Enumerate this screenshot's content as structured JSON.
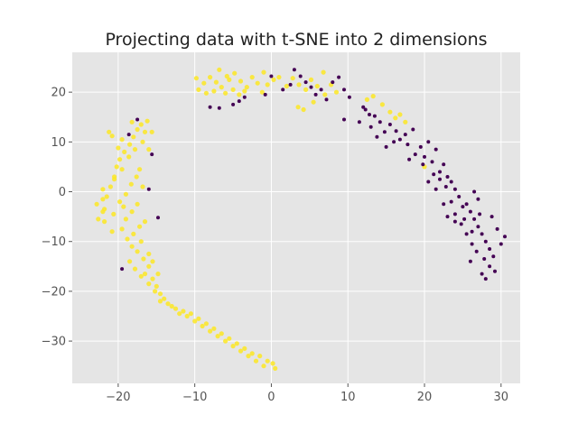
{
  "chart_data": {
    "type": "scatter",
    "title": "Projecting data with t-SNE into 2 dimensions",
    "xlabel": "",
    "ylabel": "",
    "xlim": [
      -26,
      32.5
    ],
    "ylim": [
      -38.5,
      28
    ],
    "xticks": [
      -20,
      -10,
      0,
      10,
      20,
      30
    ],
    "yticks": [
      -30,
      -20,
      -10,
      0,
      10,
      20
    ],
    "grid": true,
    "background": "#e5e5e5",
    "gridColor": "#ffffff",
    "series": [
      {
        "color": "#fde725",
        "points": [
          [
            -22.0,
            -4.0
          ],
          [
            -22.8,
            -2.5
          ],
          [
            -21.5,
            -1.0
          ],
          [
            -21.0,
            1.0
          ],
          [
            -20.5,
            3.0
          ],
          [
            -20.2,
            5.0
          ],
          [
            -19.8,
            6.5
          ],
          [
            -19.2,
            8.0
          ],
          [
            -18.5,
            9.5
          ],
          [
            -18.0,
            11.0
          ],
          [
            -17.5,
            12.5
          ],
          [
            -17.0,
            13.5
          ],
          [
            -16.5,
            12.0
          ],
          [
            -16.8,
            10.0
          ],
          [
            -17.8,
            8.5
          ],
          [
            -18.6,
            7.0
          ],
          [
            -19.5,
            4.5
          ],
          [
            -20.5,
            2.5
          ],
          [
            -21.2,
            12.0
          ],
          [
            -20.8,
            11.2
          ],
          [
            -22.0,
            -1.5
          ],
          [
            -21.8,
            -3.5
          ],
          [
            -22.6,
            -5.5
          ],
          [
            -21.8,
            -6.0
          ],
          [
            -20.6,
            -4.5
          ],
          [
            -19.8,
            -2.0
          ],
          [
            -19.0,
            -0.5
          ],
          [
            -18.3,
            1.5
          ],
          [
            -17.6,
            3.0
          ],
          [
            -17.2,
            4.5
          ],
          [
            -16.8,
            1.0
          ],
          [
            -17.5,
            -2.5
          ],
          [
            -18.2,
            -4.0
          ],
          [
            -19.0,
            -5.5
          ],
          [
            -19.5,
            -7.5
          ],
          [
            -18.8,
            -9.5
          ],
          [
            -18.0,
            -8.5
          ],
          [
            -17.2,
            -7.0
          ],
          [
            -16.5,
            -6.0
          ],
          [
            -17.0,
            -10.0
          ],
          [
            -17.5,
            -12.0
          ],
          [
            -16.7,
            -13.5
          ],
          [
            -16.0,
            -15.0
          ],
          [
            -16.5,
            -16.5
          ],
          [
            -15.5,
            -17.5
          ],
          [
            -15.0,
            -19.0
          ],
          [
            -14.5,
            -20.5
          ],
          [
            -14.0,
            -21.5
          ],
          [
            -13.5,
            -22.5
          ],
          [
            -12.5,
            -23.5
          ],
          [
            -11.5,
            -24.0
          ],
          [
            -10.5,
            -24.5
          ],
          [
            -9.5,
            -25.5
          ],
          [
            -8.5,
            -26.5
          ],
          [
            -7.5,
            -27.5
          ],
          [
            -6.5,
            -28.5
          ],
          [
            -5.5,
            -29.5
          ],
          [
            -4.5,
            -30.5
          ],
          [
            -3.5,
            -31.5
          ],
          [
            -2.5,
            -32.5
          ],
          [
            -1.5,
            -33.0
          ],
          [
            -0.5,
            -34.0
          ],
          [
            0.2,
            -34.5
          ],
          [
            0.5,
            -35.5
          ],
          [
            -1.0,
            -35.0
          ],
          [
            -2.0,
            -34.0
          ],
          [
            -3.0,
            -33.0
          ],
          [
            -4.0,
            -32.0
          ],
          [
            -5.0,
            -31.0
          ],
          [
            -6.0,
            -30.0
          ],
          [
            -7.0,
            -29.0
          ],
          [
            -8.0,
            -28.0
          ],
          [
            -9.0,
            -27.0
          ],
          [
            -10.0,
            -26.0
          ],
          [
            -11.0,
            -25.0
          ],
          [
            -12.0,
            -24.5
          ],
          [
            -13.0,
            -23.0
          ],
          [
            -14.5,
            -22.0
          ],
          [
            -15.2,
            -20.0
          ],
          [
            -16.0,
            -18.5
          ],
          [
            -17.0,
            -17.0
          ],
          [
            -17.8,
            -15.5
          ],
          [
            -18.5,
            -14.0
          ],
          [
            -14.8,
            -16.5
          ],
          [
            -15.5,
            -14.0
          ],
          [
            -16.0,
            -12.5
          ],
          [
            -18.2,
            -11.0
          ],
          [
            -19.3,
            -3.0
          ],
          [
            -20.8,
            -8.0
          ],
          [
            -22.0,
            0.5
          ],
          [
            -16.0,
            8.5
          ],
          [
            -15.6,
            12.0
          ],
          [
            -16.2,
            14.2
          ],
          [
            -18.2,
            14.0
          ],
          [
            -19.5,
            10.5
          ],
          [
            -20.0,
            8.8
          ],
          [
            -9.5,
            20.5
          ],
          [
            -8.8,
            21.8
          ],
          [
            -8.0,
            23.0
          ],
          [
            -7.2,
            22.0
          ],
          [
            -6.5,
            21.0
          ],
          [
            -5.5,
            22.5
          ],
          [
            -4.8,
            23.8
          ],
          [
            -4.0,
            22.2
          ],
          [
            -3.2,
            21.0
          ],
          [
            -2.5,
            23.0
          ],
          [
            -1.8,
            21.8
          ],
          [
            -8.5,
            19.8
          ],
          [
            -7.5,
            20.2
          ],
          [
            -6.0,
            19.8
          ],
          [
            -5.0,
            20.5
          ],
          [
            -4.2,
            19.5
          ],
          [
            -3.5,
            20.2
          ],
          [
            -6.8,
            24.5
          ],
          [
            -5.8,
            23.2
          ],
          [
            -1.2,
            20.0
          ],
          [
            -0.5,
            21.5
          ],
          [
            0.3,
            22.5
          ],
          [
            1.0,
            23.0
          ],
          [
            2.0,
            21.2
          ],
          [
            2.8,
            22.8
          ],
          [
            3.6,
            21.5
          ],
          [
            4.5,
            20.5
          ],
          [
            5.2,
            22.5
          ],
          [
            6.0,
            21.2
          ],
          [
            7.0,
            19.5
          ],
          [
            7.8,
            21.5
          ],
          [
            8.5,
            20.0
          ],
          [
            5.5,
            18.0
          ],
          [
            3.5,
            17.0
          ],
          [
            4.2,
            16.5
          ],
          [
            12.5,
            18.5
          ],
          [
            13.3,
            19.2
          ],
          [
            14.5,
            17.5
          ],
          [
            15.5,
            16.0
          ],
          [
            16.2,
            14.8
          ],
          [
            16.8,
            15.5
          ],
          [
            17.5,
            14.0
          ],
          [
            20.0,
            5.0
          ],
          [
            -9.8,
            22.8
          ],
          [
            -1.0,
            24.0
          ],
          [
            6.8,
            24.0
          ]
        ]
      },
      {
        "color": "#440154",
        "points": [
          [
            -8.0,
            17.0
          ],
          [
            -6.8,
            16.8
          ],
          [
            -5.0,
            17.5
          ],
          [
            -4.2,
            18.2
          ],
          [
            -3.5,
            19.0
          ],
          [
            -0.8,
            19.5
          ],
          [
            0.0,
            23.2
          ],
          [
            1.5,
            20.5
          ],
          [
            2.5,
            21.5
          ],
          [
            3.0,
            24.5
          ],
          [
            3.8,
            23.2
          ],
          [
            4.5,
            22.0
          ],
          [
            5.2,
            21.0
          ],
          [
            5.8,
            19.5
          ],
          [
            6.5,
            20.5
          ],
          [
            7.2,
            18.5
          ],
          [
            8.0,
            22.0
          ],
          [
            8.8,
            23.0
          ],
          [
            9.5,
            20.5
          ],
          [
            10.2,
            19.0
          ],
          [
            9.5,
            14.5
          ],
          [
            11.5,
            14.0
          ],
          [
            12.0,
            17.0
          ],
          [
            12.8,
            15.5
          ],
          [
            13.5,
            15.2
          ],
          [
            14.2,
            14.0
          ],
          [
            14.8,
            12.0
          ],
          [
            15.5,
            13.5
          ],
          [
            16.3,
            12.2
          ],
          [
            16.8,
            10.5
          ],
          [
            17.5,
            11.5
          ],
          [
            18.5,
            12.5
          ],
          [
            19.5,
            9.0
          ],
          [
            20.0,
            7.0
          ],
          [
            20.5,
            10.0
          ],
          [
            21.0,
            6.0
          ],
          [
            21.5,
            8.5
          ],
          [
            22.0,
            4.0
          ],
          [
            22.5,
            5.5
          ],
          [
            23.0,
            3.0
          ],
          [
            23.5,
            2.0
          ],
          [
            24.0,
            0.5
          ],
          [
            24.5,
            -1.0
          ],
          [
            25.0,
            -3.0
          ],
          [
            25.5,
            -2.5
          ],
          [
            26.0,
            -4.0
          ],
          [
            26.5,
            -5.5
          ],
          [
            27.0,
            -7.0
          ],
          [
            27.5,
            -8.5
          ],
          [
            28.0,
            -10.0
          ],
          [
            28.5,
            -11.5
          ],
          [
            29.0,
            -13.0
          ],
          [
            28.5,
            -15.0
          ],
          [
            29.2,
            -16.0
          ],
          [
            27.5,
            -16.5
          ],
          [
            28.0,
            -17.5
          ],
          [
            27.8,
            -13.5
          ],
          [
            26.8,
            -12.0
          ],
          [
            26.2,
            -10.5
          ],
          [
            25.5,
            -8.5
          ],
          [
            24.8,
            -6.5
          ],
          [
            24.0,
            -4.5
          ],
          [
            23.5,
            -2.0
          ],
          [
            22.8,
            1.0
          ],
          [
            22.0,
            2.5
          ],
          [
            21.2,
            3.5
          ],
          [
            30.5,
            -9.0
          ],
          [
            30.0,
            -10.5
          ],
          [
            29.5,
            -7.5
          ],
          [
            28.8,
            -5.0
          ],
          [
            27.0,
            -1.5
          ],
          [
            26.5,
            0.0
          ],
          [
            26.0,
            -14.0
          ],
          [
            26.2,
            -8.0
          ],
          [
            27.2,
            -4.5
          ],
          [
            25.2,
            -5.5
          ],
          [
            24.0,
            -6.0
          ],
          [
            23.0,
            -5.0
          ],
          [
            22.5,
            -2.5
          ],
          [
            21.5,
            0.5
          ],
          [
            20.5,
            2.0
          ],
          [
            19.8,
            5.5
          ],
          [
            18.8,
            7.5
          ],
          [
            17.8,
            9.5
          ],
          [
            18.0,
            6.5
          ],
          [
            16.0,
            10.0
          ],
          [
            15.0,
            9.0
          ],
          [
            13.8,
            11.0
          ],
          [
            13.0,
            13.0
          ],
          [
            12.3,
            16.5
          ],
          [
            -17.5,
            14.5
          ],
          [
            -15.6,
            7.5
          ],
          [
            -14.8,
            -5.2
          ],
          [
            -19.5,
            -15.5
          ],
          [
            -16.0,
            0.5
          ],
          [
            -18.6,
            11.5
          ]
        ]
      }
    ]
  }
}
